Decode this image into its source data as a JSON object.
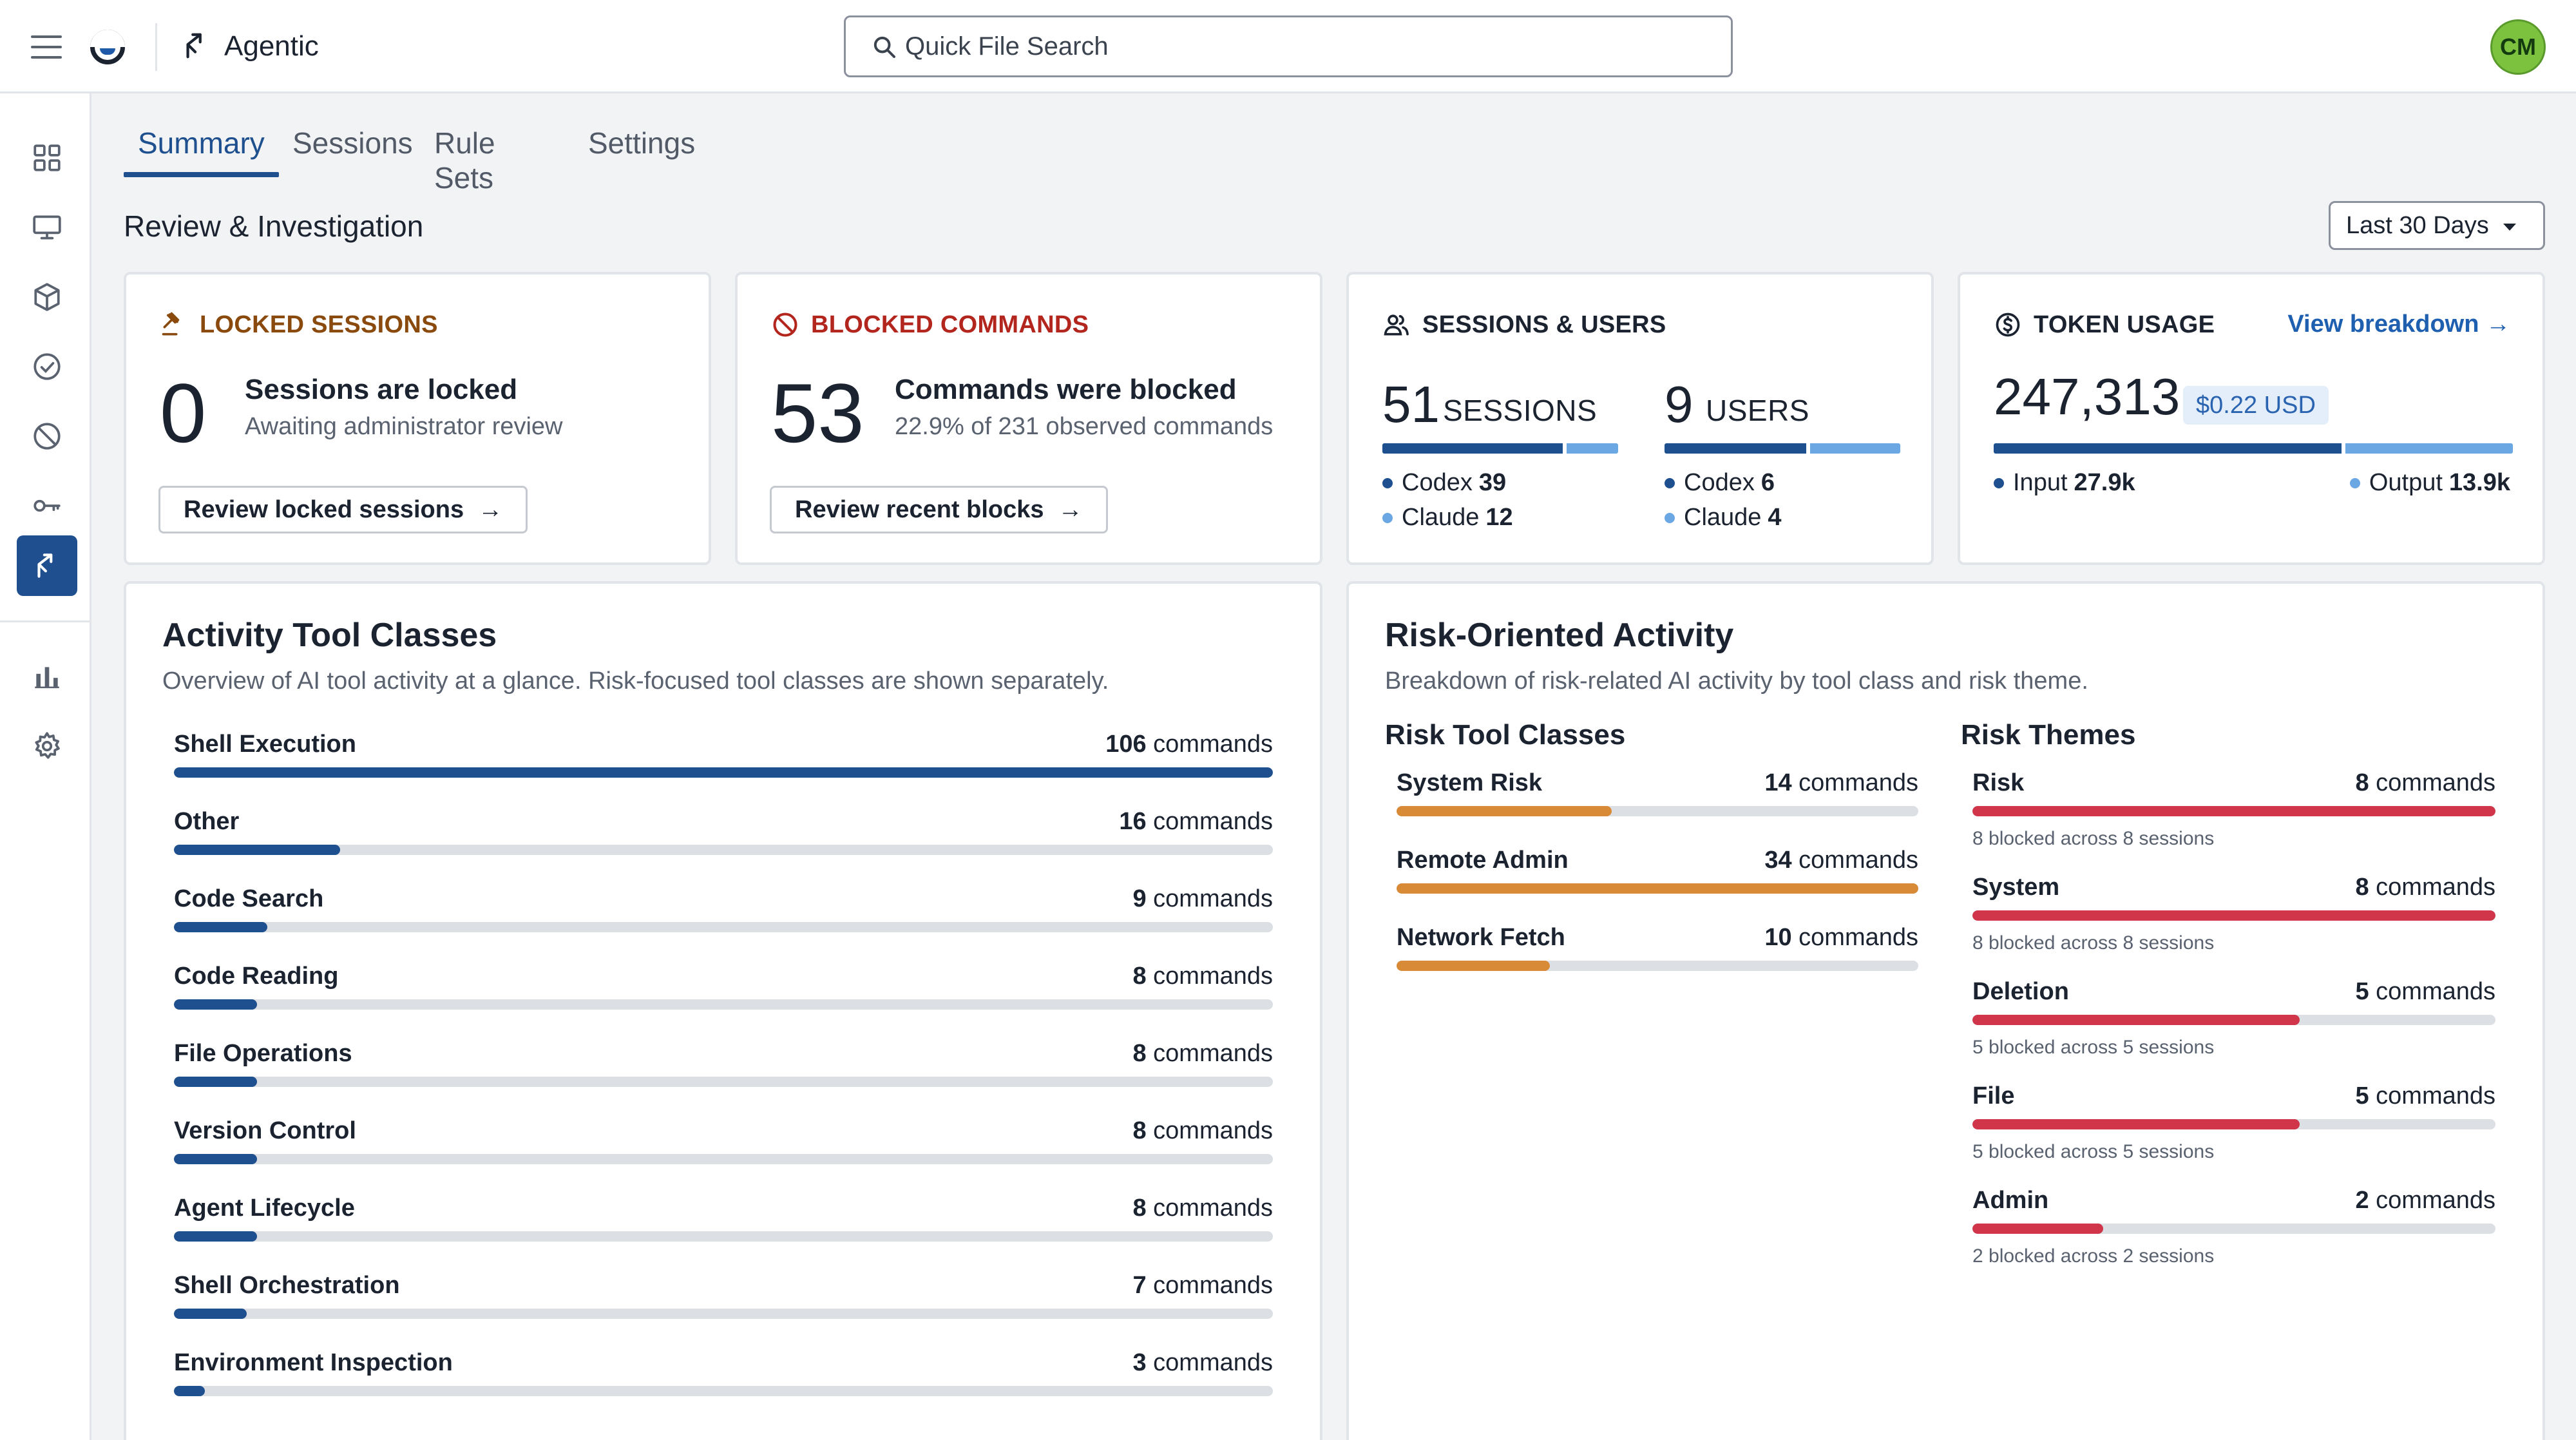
{
  "app": {
    "title": "Agentic"
  },
  "search": {
    "placeholder": "Quick File Search"
  },
  "user": {
    "initials": "CM"
  },
  "tabs": [
    {
      "label": "Summary",
      "active": true
    },
    {
      "label": "Sessions"
    },
    {
      "label": "Rule Sets"
    },
    {
      "label": "Settings"
    }
  ],
  "heading": "Review & Investigation",
  "range": {
    "selected": "Last 30 Days"
  },
  "cards": {
    "locked": {
      "title": "LOCKED SESSIONS",
      "value": "0",
      "headline": "Sessions are locked",
      "sub": "Awaiting administrator review",
      "button": "Review locked sessions"
    },
    "blocked": {
      "title": "BLOCKED COMMANDS",
      "value": "53",
      "headline": "Commands were blocked",
      "sub": "22.9% of 231 observed commands",
      "button": "Review recent blocks"
    },
    "sessions_users": {
      "title": "SESSIONS & USERS",
      "sessions": {
        "value": "51",
        "label": "SESSIONS",
        "codex_label": "Codex",
        "codex": "39",
        "claude_label": "Claude",
        "claude": "12",
        "codex_share": 0.765
      },
      "users": {
        "value": "9",
        "label": "USERS",
        "codex_label": "Codex",
        "codex": "6",
        "claude_label": "Claude",
        "claude": "4",
        "codex_share": 0.6
      }
    },
    "tokens": {
      "title": "TOKEN USAGE",
      "link": "View breakdown",
      "value": "247,313",
      "cost": "$0.22 USD",
      "input_label": "Input",
      "input": "27.9k",
      "output_label": "Output",
      "output": "13.9k",
      "input_share": 0.67
    }
  },
  "activity": {
    "title": "Activity Tool Classes",
    "subtitle": "Overview of AI tool activity at a glance. Risk-focused tool classes are shown separately.",
    "unit": "commands",
    "max": 106,
    "items": [
      {
        "label": "Shell Execution",
        "count": 106
      },
      {
        "label": "Other",
        "count": 16
      },
      {
        "label": "Code Search",
        "count": 9
      },
      {
        "label": "Code Reading",
        "count": 8
      },
      {
        "label": "File Operations",
        "count": 8
      },
      {
        "label": "Version Control",
        "count": 8
      },
      {
        "label": "Agent Lifecycle",
        "count": 8
      },
      {
        "label": "Shell Orchestration",
        "count": 7
      },
      {
        "label": "Environment Inspection",
        "count": 3
      }
    ]
  },
  "risk": {
    "title": "Risk-Oriented Activity",
    "subtitle": "Breakdown of risk-related AI activity by tool class and risk theme.",
    "unit": "commands",
    "classes_title": "Risk Tool Classes",
    "classes_max": 34,
    "classes": [
      {
        "label": "System Risk",
        "count": 14
      },
      {
        "label": "Remote Admin",
        "count": 34
      },
      {
        "label": "Network Fetch",
        "count": 10
      }
    ],
    "themes_title": "Risk Themes",
    "themes_max": 8,
    "themes": [
      {
        "label": "Risk",
        "count": 8,
        "note": "8 blocked across 8 sessions"
      },
      {
        "label": "System",
        "count": 8,
        "note": "8 blocked across 8 sessions"
      },
      {
        "label": "Deletion",
        "count": 5,
        "note": "5 blocked across 5 sessions"
      },
      {
        "label": "File",
        "count": 5,
        "note": "5 blocked across 5 sessions"
      },
      {
        "label": "Admin",
        "count": 2,
        "note": "2 blocked across 2 sessions"
      }
    ]
  },
  "colors": {
    "accent": "#1e4f8f",
    "accent_light": "#6aa7e3",
    "orange": "#d98a37",
    "red": "#d0354a",
    "locked": "#8a4a0e",
    "blocked": "#b3261e"
  },
  "icons": {
    "rail": [
      "dashboard-icon",
      "monitor-icon",
      "package-icon",
      "check-circle-icon",
      "blocked-icon",
      "key-icon",
      "agentic-icon",
      "bar-chart-icon",
      "settings-icon"
    ]
  }
}
